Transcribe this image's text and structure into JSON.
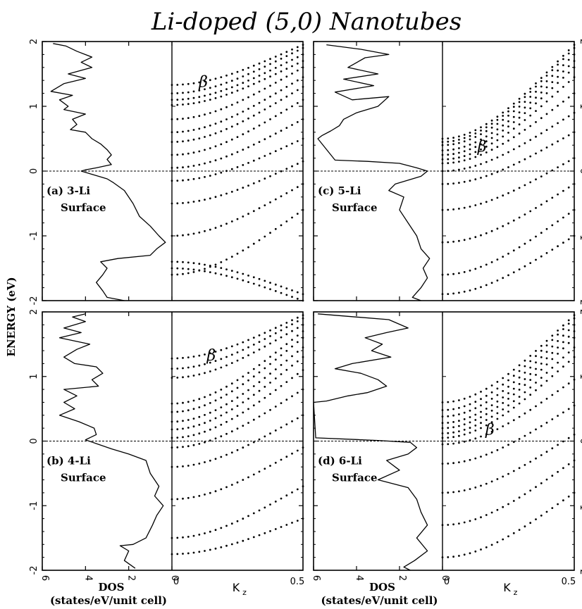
{
  "title": "Li-doped (5,0) Nanotubes",
  "ylabel": "ENERGY (eV)",
  "dos_xlabel": "DOS",
  "dos_xlabel_units": "(states/eV/unit cell)",
  "band_xlabel": "K",
  "band_xlabel_sub": "z",
  "fermi_energy": 0,
  "chart_data": [
    {
      "type": "line",
      "panel": "a",
      "label": "(a) 3-Li",
      "label2": "Surface",
      "annotation": "β",
      "dos_xlim": [
        6,
        0
      ],
      "ylim": [
        -2,
        2
      ],
      "kz_xlim": [
        0,
        0.5
      ],
      "dos_ticks": [
        "6",
        "4",
        "2",
        "0"
      ],
      "y_ticks": [
        "-2",
        "-1",
        "0",
        "1",
        "2"
      ],
      "kz_ticks": [
        "0",
        "0.5"
      ],
      "dos": [
        [
          5.5,
          1.97
        ],
        [
          4.9,
          1.93
        ],
        [
          4.4,
          1.85
        ],
        [
          3.7,
          1.76
        ],
        [
          4.2,
          1.68
        ],
        [
          3.7,
          1.6
        ],
        [
          4.8,
          1.5
        ],
        [
          4.0,
          1.43
        ],
        [
          5.0,
          1.35
        ],
        [
          5.6,
          1.23
        ],
        [
          4.6,
          1.17
        ],
        [
          5.2,
          1.1
        ],
        [
          4.8,
          1.0
        ],
        [
          5.0,
          0.95
        ],
        [
          4.0,
          0.88
        ],
        [
          4.6,
          0.8
        ],
        [
          4.4,
          0.72
        ],
        [
          4.7,
          0.64
        ],
        [
          4.0,
          0.6
        ],
        [
          3.7,
          0.5
        ],
        [
          3.3,
          0.42
        ],
        [
          3.0,
          0.33
        ],
        [
          2.8,
          0.25
        ],
        [
          3.0,
          0.18
        ],
        [
          2.8,
          0.1
        ],
        [
          3.5,
          0.05
        ],
        [
          4.0,
          0.02
        ],
        [
          4.2,
          0.0
        ],
        [
          3.6,
          -0.06
        ],
        [
          3.0,
          -0.12
        ],
        [
          2.7,
          -0.18
        ],
        [
          2.2,
          -0.3
        ],
        [
          1.8,
          -0.5
        ],
        [
          1.5,
          -0.7
        ],
        [
          1.0,
          -0.85
        ],
        [
          0.6,
          -1.0
        ],
        [
          0.3,
          -1.1
        ],
        [
          0.7,
          -1.2
        ],
        [
          1.0,
          -1.3
        ],
        [
          2.5,
          -1.35
        ],
        [
          3.3,
          -1.4
        ],
        [
          3.0,
          -1.5
        ],
        [
          3.2,
          -1.6
        ],
        [
          3.5,
          -1.72
        ],
        [
          3.2,
          -1.85
        ],
        [
          3.0,
          -1.95
        ],
        [
          2.2,
          -2.0
        ]
      ],
      "bands": [
        {
          "e0": 1.33,
          "e1": 1.95
        },
        {
          "e0": 1.2,
          "e1": 1.9
        },
        {
          "e0": 1.1,
          "e1": 1.8
        },
        {
          "e0": 1.02,
          "e1": 1.7
        },
        {
          "e0": 0.8,
          "e1": 1.6
        },
        {
          "e0": 0.6,
          "e1": 1.45
        },
        {
          "e0": 0.45,
          "e1": 1.3
        },
        {
          "e0": 0.25,
          "e1": 1.1
        },
        {
          "e0": 0.05,
          "e1": 0.8
        },
        {
          "e0": -0.15,
          "e1": 0.5
        },
        {
          "e0": -0.5,
          "e1": 0.15
        },
        {
          "e0": -1.0,
          "e1": -0.2
        },
        {
          "e0": -1.6,
          "e1": -0.6
        },
        {
          "e0": -1.4,
          "e1": -1.9
        },
        {
          "e0": -1.5,
          "e1": -2.0
        }
      ]
    },
    {
      "type": "line",
      "panel": "b",
      "label": "(b) 4-Li",
      "label2": "Surface",
      "annotation": "β",
      "dos_xlim": [
        6,
        0
      ],
      "ylim": [
        -2,
        2
      ],
      "kz_xlim": [
        0,
        0.5
      ],
      "dos_ticks": [
        "6",
        "4",
        "2",
        "0"
      ],
      "y_ticks": [
        "-2",
        "-1",
        "0",
        "1",
        "2"
      ],
      "kz_ticks": [
        "0",
        "0.5"
      ],
      "dos": [
        [
          4.0,
          1.97
        ],
        [
          4.6,
          1.92
        ],
        [
          4.0,
          1.85
        ],
        [
          5.0,
          1.75
        ],
        [
          4.2,
          1.68
        ],
        [
          5.2,
          1.6
        ],
        [
          3.8,
          1.5
        ],
        [
          4.4,
          1.42
        ],
        [
          5.0,
          1.3
        ],
        [
          4.5,
          1.2
        ],
        [
          3.5,
          1.15
        ],
        [
          3.2,
          1.05
        ],
        [
          3.7,
          0.95
        ],
        [
          3.4,
          0.85
        ],
        [
          5.0,
          0.8
        ],
        [
          4.4,
          0.7
        ],
        [
          5.0,
          0.6
        ],
        [
          4.5,
          0.5
        ],
        [
          5.2,
          0.4
        ],
        [
          4.3,
          0.3
        ],
        [
          3.6,
          0.2
        ],
        [
          3.5,
          0.1
        ],
        [
          4.0,
          0.02
        ],
        [
          3.4,
          -0.05
        ],
        [
          2.8,
          -0.12
        ],
        [
          2.0,
          -0.2
        ],
        [
          1.2,
          -0.3
        ],
        [
          1.0,
          -0.5
        ],
        [
          0.6,
          -0.7
        ],
        [
          0.8,
          -0.85
        ],
        [
          0.4,
          -1.0
        ],
        [
          0.7,
          -1.15
        ],
        [
          0.9,
          -1.3
        ],
        [
          1.2,
          -1.5
        ],
        [
          1.8,
          -1.6
        ],
        [
          2.4,
          -1.62
        ],
        [
          2.0,
          -1.7
        ],
        [
          2.2,
          -1.85
        ],
        [
          1.7,
          -1.97
        ]
      ],
      "bands": [
        {
          "e0": 1.28,
          "e1": 1.95
        },
        {
          "e0": 1.12,
          "e1": 1.9
        },
        {
          "e0": 0.98,
          "e1": 1.8
        },
        {
          "e0": 0.58,
          "e1": 1.7
        },
        {
          "e0": 0.45,
          "e1": 1.6
        },
        {
          "e0": 0.3,
          "e1": 1.45
        },
        {
          "e0": 0.18,
          "e1": 1.3
        },
        {
          "e0": 0.05,
          "e1": 1.1
        },
        {
          "e0": -0.1,
          "e1": 0.8
        },
        {
          "e0": -0.4,
          "e1": 0.4
        },
        {
          "e0": -0.9,
          "e1": -0.1
        },
        {
          "e0": -1.5,
          "e1": -0.7
        },
        {
          "e0": -1.75,
          "e1": -1.2
        }
      ]
    },
    {
      "type": "line",
      "panel": "c",
      "label": "(c) 5-Li",
      "label2": "Surface",
      "annotation": "β",
      "dos_xlim": [
        6,
        0
      ],
      "ylim": [
        -2,
        2
      ],
      "kz_xlim": [
        0,
        0.5
      ],
      "dos_ticks": [
        "6",
        "4",
        "2",
        "0"
      ],
      "y_ticks": [
        "-2",
        "-1",
        "0",
        "1",
        "2"
      ],
      "kz_ticks": [
        "0",
        "0.5"
      ],
      "dos": [
        [
          5.4,
          1.95
        ],
        [
          3.8,
          1.88
        ],
        [
          2.5,
          1.8
        ],
        [
          3.6,
          1.75
        ],
        [
          4.4,
          1.6
        ],
        [
          3.0,
          1.5
        ],
        [
          4.6,
          1.42
        ],
        [
          3.2,
          1.32
        ],
        [
          5.0,
          1.22
        ],
        [
          4.2,
          1.1
        ],
        [
          2.5,
          1.15
        ],
        [
          3.0,
          1.0
        ],
        [
          4.0,
          0.9
        ],
        [
          4.6,
          0.8
        ],
        [
          4.8,
          0.7
        ],
        [
          5.2,
          0.62
        ],
        [
          5.6,
          0.55
        ],
        [
          5.8,
          0.5
        ],
        [
          5.0,
          0.17
        ],
        [
          3.5,
          0.15
        ],
        [
          2.0,
          0.12
        ],
        [
          1.2,
          0.05
        ],
        [
          0.7,
          0.0
        ],
        [
          1.0,
          -0.08
        ],
        [
          2.2,
          -0.2
        ],
        [
          2.5,
          -0.3
        ],
        [
          1.8,
          -0.4
        ],
        [
          2.0,
          -0.6
        ],
        [
          1.6,
          -0.8
        ],
        [
          1.2,
          -1.0
        ],
        [
          1.0,
          -1.2
        ],
        [
          0.6,
          -1.35
        ],
        [
          0.9,
          -1.5
        ],
        [
          0.7,
          -1.65
        ],
        [
          1.0,
          -1.8
        ],
        [
          1.4,
          -1.95
        ],
        [
          1.0,
          -2.0
        ]
      ],
      "bands": [
        {
          "e0": 0.5,
          "e1": 1.95
        },
        {
          "e0": 0.45,
          "e1": 1.9
        },
        {
          "e0": 0.4,
          "e1": 1.8
        },
        {
          "e0": 0.32,
          "e1": 1.7
        },
        {
          "e0": 0.25,
          "e1": 1.6
        },
        {
          "e0": 0.18,
          "e1": 1.45
        },
        {
          "e0": 0.12,
          "e1": 1.2
        },
        {
          "e0": 0.0,
          "e1": 0.9
        },
        {
          "e0": -0.2,
          "e1": 0.6
        },
        {
          "e0": -0.6,
          "e1": 0.2
        },
        {
          "e0": -1.1,
          "e1": -0.2
        },
        {
          "e0": -1.6,
          "e1": -0.6
        },
        {
          "e0": -1.9,
          "e1": -1.0
        }
      ]
    },
    {
      "type": "line",
      "panel": "d",
      "label": "(d) 6-Li",
      "label2": "Surface",
      "annotation": "β",
      "dos_xlim": [
        6,
        0
      ],
      "ylim": [
        -2,
        2
      ],
      "kz_xlim": [
        0,
        0.5
      ],
      "dos_ticks": [
        "6",
        "4",
        "2",
        "0"
      ],
      "y_ticks": [
        "-2",
        "-1",
        "0",
        "1",
        "2"
      ],
      "kz_ticks": [
        "0",
        "0.5"
      ],
      "dos": [
        [
          5.8,
          1.97
        ],
        [
          4.0,
          1.92
        ],
        [
          2.5,
          1.88
        ],
        [
          1.6,
          1.75
        ],
        [
          2.6,
          1.68
        ],
        [
          3.6,
          1.6
        ],
        [
          2.8,
          1.5
        ],
        [
          3.3,
          1.4
        ],
        [
          2.4,
          1.3
        ],
        [
          4.2,
          1.2
        ],
        [
          5.0,
          1.12
        ],
        [
          3.8,
          1.05
        ],
        [
          3.0,
          0.95
        ],
        [
          2.6,
          0.85
        ],
        [
          3.5,
          0.75
        ],
        [
          4.4,
          0.7
        ],
        [
          5.4,
          0.62
        ],
        [
          6.0,
          0.6
        ],
        [
          5.9,
          0.05
        ],
        [
          4.5,
          0.03
        ],
        [
          3.0,
          0.01
        ],
        [
          1.5,
          -0.02
        ],
        [
          1.2,
          -0.1
        ],
        [
          1.6,
          -0.2
        ],
        [
          2.6,
          -0.3
        ],
        [
          2.0,
          -0.45
        ],
        [
          3.0,
          -0.6
        ],
        [
          1.6,
          -0.72
        ],
        [
          1.2,
          -0.9
        ],
        [
          1.0,
          -1.1
        ],
        [
          0.7,
          -1.3
        ],
        [
          1.2,
          -1.5
        ],
        [
          0.7,
          -1.7
        ],
        [
          1.3,
          -1.85
        ],
        [
          1.8,
          -1.95
        ],
        [
          1.5,
          -2.0
        ]
      ],
      "bands": [
        {
          "e0": 0.6,
          "e1": 1.95
        },
        {
          "e0": 0.48,
          "e1": 1.9
        },
        {
          "e0": 0.38,
          "e1": 1.8
        },
        {
          "e0": 0.28,
          "e1": 1.7
        },
        {
          "e0": 0.2,
          "e1": 1.6
        },
        {
          "e0": 0.12,
          "e1": 1.45
        },
        {
          "e0": 0.05,
          "e1": 1.3
        },
        {
          "e0": -0.05,
          "e1": 0.95
        },
        {
          "e0": -0.35,
          "e1": 0.55
        },
        {
          "e0": -0.8,
          "e1": 0.1
        },
        {
          "e0": -1.3,
          "e1": -0.3
        },
        {
          "e0": -1.8,
          "e1": -0.8
        }
      ]
    }
  ]
}
